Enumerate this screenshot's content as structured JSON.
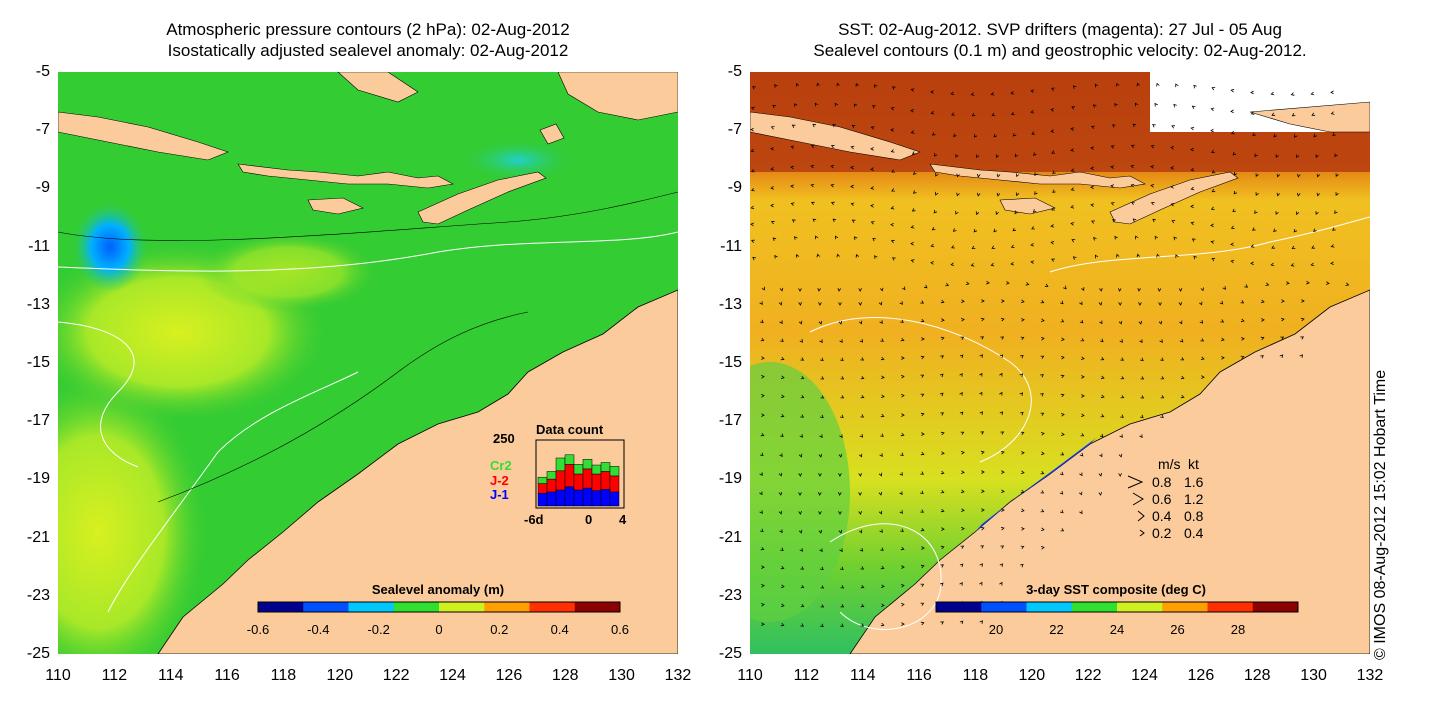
{
  "left_panel": {
    "title_line1": "Atmospheric pressure contours (2 hPa): 02-Aug-2012",
    "title_line2": "Isostatically adjusted sealevel anomaly: 02-Aug-2012",
    "colorbar": {
      "title": "Sealevel anomaly (m)",
      "ticks": [
        "-0.6",
        "-0.4",
        "-0.2",
        "0",
        "0.2",
        "0.4",
        "0.6"
      ],
      "colors": [
        "#00008f",
        "#0050ff",
        "#00c8ff",
        "#30e030",
        "#d0f020",
        "#ffa000",
        "#ff3000",
        "#8b0000"
      ]
    },
    "data_count": {
      "title": "Data count",
      "ymax": "250",
      "legend": [
        "Cr2",
        "J-2",
        "J-1"
      ],
      "legend_colors": [
        "#33dd33",
        "#ff0000",
        "#0000ff"
      ],
      "xticks": [
        "-6d",
        "0",
        "4"
      ],
      "bars": [
        {
          "j1": 0.2,
          "j2": 0.15,
          "cr2": 0.1
        },
        {
          "j1": 0.22,
          "j2": 0.2,
          "cr2": 0.12
        },
        {
          "j1": 0.25,
          "j2": 0.3,
          "cr2": 0.2
        },
        {
          "j1": 0.3,
          "j2": 0.35,
          "cr2": 0.15
        },
        {
          "j1": 0.25,
          "j2": 0.25,
          "cr2": 0.15
        },
        {
          "j1": 0.28,
          "j2": 0.3,
          "cr2": 0.15
        },
        {
          "j1": 0.24,
          "j2": 0.26,
          "cr2": 0.14
        },
        {
          "j1": 0.26,
          "j2": 0.28,
          "cr2": 0.14
        },
        {
          "j1": 0.22,
          "j2": 0.25,
          "cr2": 0.15
        }
      ]
    }
  },
  "right_panel": {
    "title_line1": "SST: 02-Aug-2012. SVP drifters (magenta): 27 Jul - 05 Aug",
    "title_line2": "Sealevel contours (0.1 m) and geostrophic velocity: 02-Aug-2012.",
    "colorbar": {
      "title": "3-day SST composite (deg C)",
      "ticks": [
        "20",
        "22",
        "24",
        "26",
        "28"
      ],
      "colors": [
        "#00008f",
        "#0050ff",
        "#00c8ff",
        "#30e030",
        "#d0f020",
        "#ffa000",
        "#ff3000",
        "#8b0000"
      ]
    },
    "velocity_legend": {
      "header_ms": "m/s",
      "header_kt": "kt",
      "rows": [
        {
          "ms": "0.8",
          "kt": "1.6"
        },
        {
          "ms": "0.6",
          "kt": "1.2"
        },
        {
          "ms": "0.4",
          "kt": "0.8"
        },
        {
          "ms": "0.2",
          "kt": "0.4"
        }
      ]
    }
  },
  "axes": {
    "lon_ticks": [
      "110",
      "112",
      "114",
      "116",
      "118",
      "120",
      "122",
      "124",
      "126",
      "128",
      "130",
      "132"
    ],
    "lat_ticks": [
      "-5",
      "-7",
      "-9",
      "-11",
      "-13",
      "-15",
      "-17",
      "-19",
      "-21",
      "-23",
      "-25"
    ]
  },
  "colors": {
    "land": "#fccb9b",
    "sea_anomaly_base": "#33cc33",
    "sst_warm": "#f0a020"
  },
  "copyright": "© IMOS 08-Aug-2012 15:02 Hobart Time"
}
